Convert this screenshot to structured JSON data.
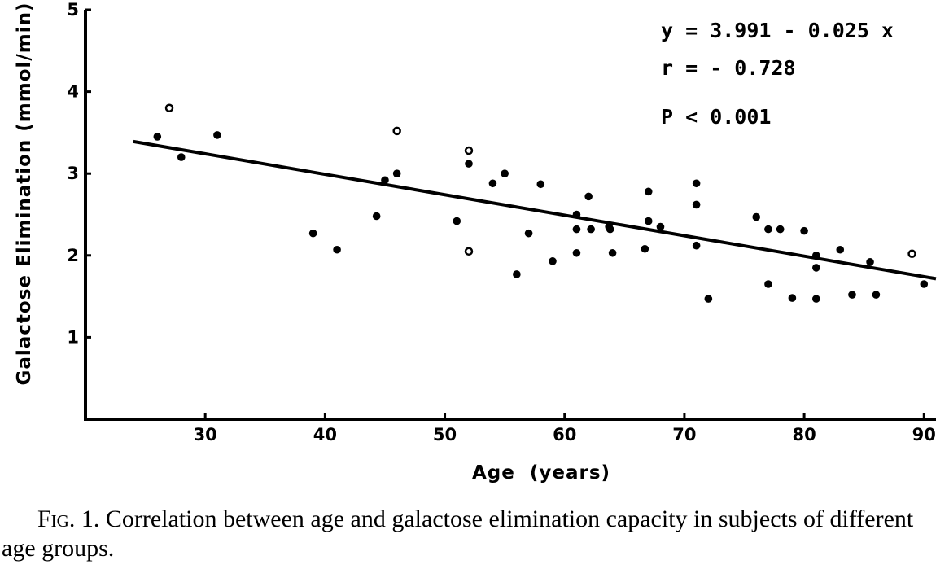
{
  "chart_data": {
    "type": "scatter",
    "xlabel": "Age  (years)",
    "ylabel": "Galactose Elimination (mmol/min)",
    "xlim": [
      20,
      91
    ],
    "ylim": [
      0,
      5
    ],
    "x_ticks": [
      30,
      40,
      50,
      60,
      70,
      80,
      90
    ],
    "y_ticks": [
      1,
      2,
      3,
      4,
      5
    ],
    "regression": {
      "intercept": 3.991,
      "slope": -0.025,
      "x_range": [
        24,
        91
      ]
    },
    "annotations": [
      "y = 3.991 - 0.025 x",
      "r = - 0.728",
      "P < 0.001"
    ],
    "series": [
      {
        "marker": "filled",
        "points": [
          [
            26,
            3.45
          ],
          [
            28,
            3.2
          ],
          [
            31,
            3.47
          ],
          [
            39,
            2.27
          ],
          [
            41,
            2.07
          ],
          [
            44.3,
            2.48
          ],
          [
            45,
            2.92
          ],
          [
            46,
            3.0
          ],
          [
            51,
            2.42
          ],
          [
            52,
            3.12
          ],
          [
            54,
            2.88
          ],
          [
            55,
            3.0
          ],
          [
            56,
            1.77
          ],
          [
            57,
            2.27
          ],
          [
            58,
            2.87
          ],
          [
            59,
            1.93
          ],
          [
            61,
            2.5
          ],
          [
            61,
            2.32
          ],
          [
            61,
            2.03
          ],
          [
            62,
            2.72
          ],
          [
            62.2,
            2.32
          ],
          [
            63.7,
            2.35
          ],
          [
            63.8,
            2.32
          ],
          [
            64,
            2.03
          ],
          [
            66.7,
            2.08
          ],
          [
            67,
            2.78
          ],
          [
            67,
            2.42
          ],
          [
            68,
            2.35
          ],
          [
            71,
            2.88
          ],
          [
            71,
            2.62
          ],
          [
            71,
            2.12
          ],
          [
            72,
            1.47
          ],
          [
            76,
            2.47
          ],
          [
            77,
            2.32
          ],
          [
            77,
            1.65
          ],
          [
            78,
            2.32
          ],
          [
            79,
            1.48
          ],
          [
            80,
            2.3
          ],
          [
            81,
            2.0
          ],
          [
            81,
            1.85
          ],
          [
            81,
            1.47
          ],
          [
            83,
            2.07
          ],
          [
            84,
            1.52
          ],
          [
            85.5,
            1.92
          ],
          [
            86,
            1.52
          ],
          [
            90,
            1.65
          ]
        ]
      },
      {
        "marker": "open",
        "points": [
          [
            27,
            3.8
          ],
          [
            46,
            3.52
          ],
          [
            52,
            3.28
          ],
          [
            52,
            2.05
          ],
          [
            89,
            2.02
          ]
        ]
      }
    ]
  },
  "caption": {
    "label": "Fig. 1.",
    "text": " Correlation between age and galactose elimination capacity in subjects of different age groups."
  }
}
